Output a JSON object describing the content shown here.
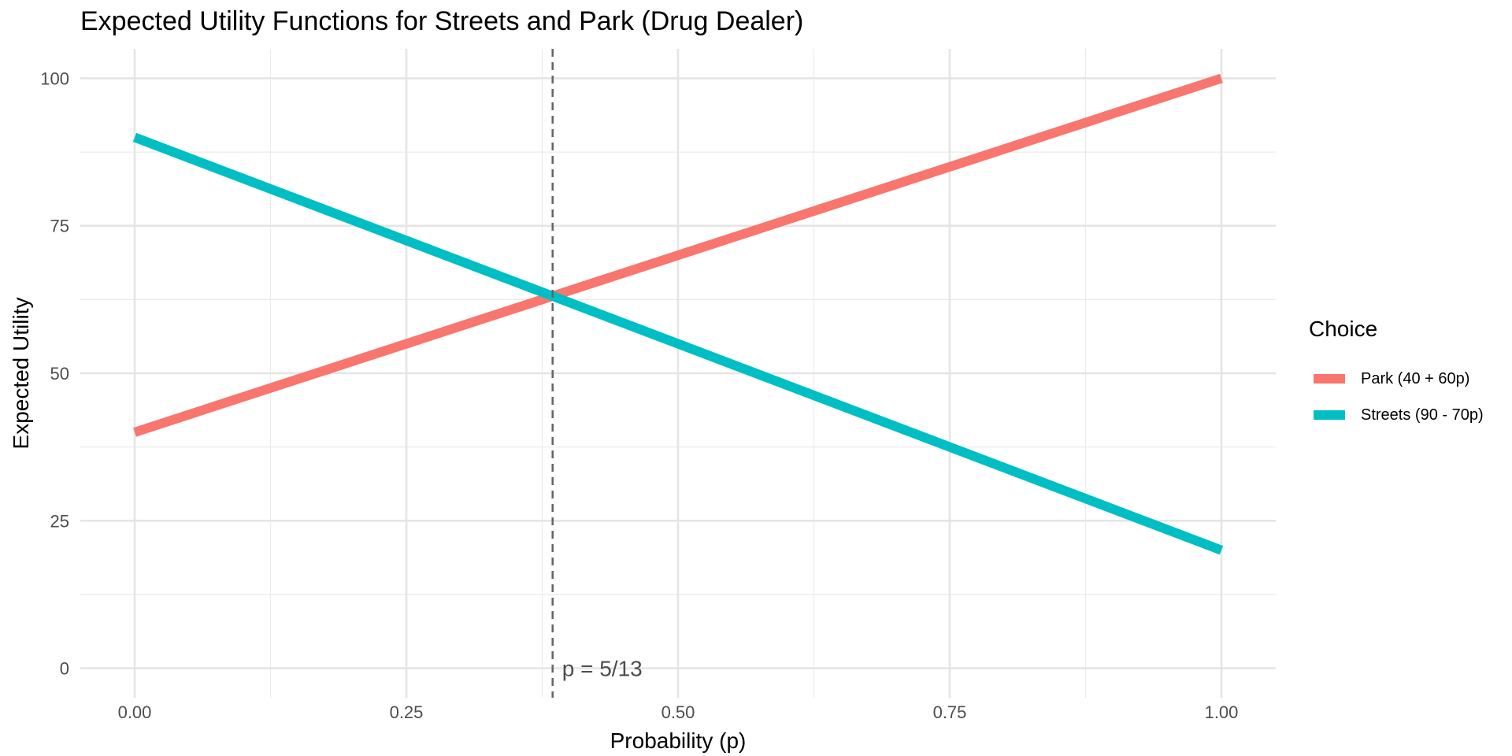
{
  "chart_data": {
    "type": "line",
    "title": "Expected Utility Functions for Streets and Park (Drug Dealer)",
    "xlabel": "Probability (p)",
    "ylabel": "Expected Utility",
    "xlim": [
      -0.05,
      1.05
    ],
    "ylim": [
      -5,
      105
    ],
    "x_ticks": [
      0,
      0.25,
      0.5,
      0.75,
      1
    ],
    "x_tick_labels": [
      "0.00",
      "0.25",
      "0.50",
      "0.75",
      "1.00"
    ],
    "y_ticks": [
      0,
      25,
      50,
      75,
      100
    ],
    "y_tick_labels": [
      "0",
      "25",
      "50",
      "75",
      "100"
    ],
    "grid": true,
    "legend": {
      "title": "Choice",
      "position": "right"
    },
    "series": [
      {
        "name": "Park (40 + 60p)",
        "color": "#F8766D",
        "x": [
          0,
          1
        ],
        "y": [
          40,
          100
        ]
      },
      {
        "name": "Streets (90 - 70p)",
        "color": "#00BFC4",
        "x": [
          0,
          1
        ],
        "y": [
          90,
          20
        ]
      }
    ],
    "vline": {
      "x": 0.3846,
      "label": "p = 5/13",
      "color": "#666666"
    }
  }
}
